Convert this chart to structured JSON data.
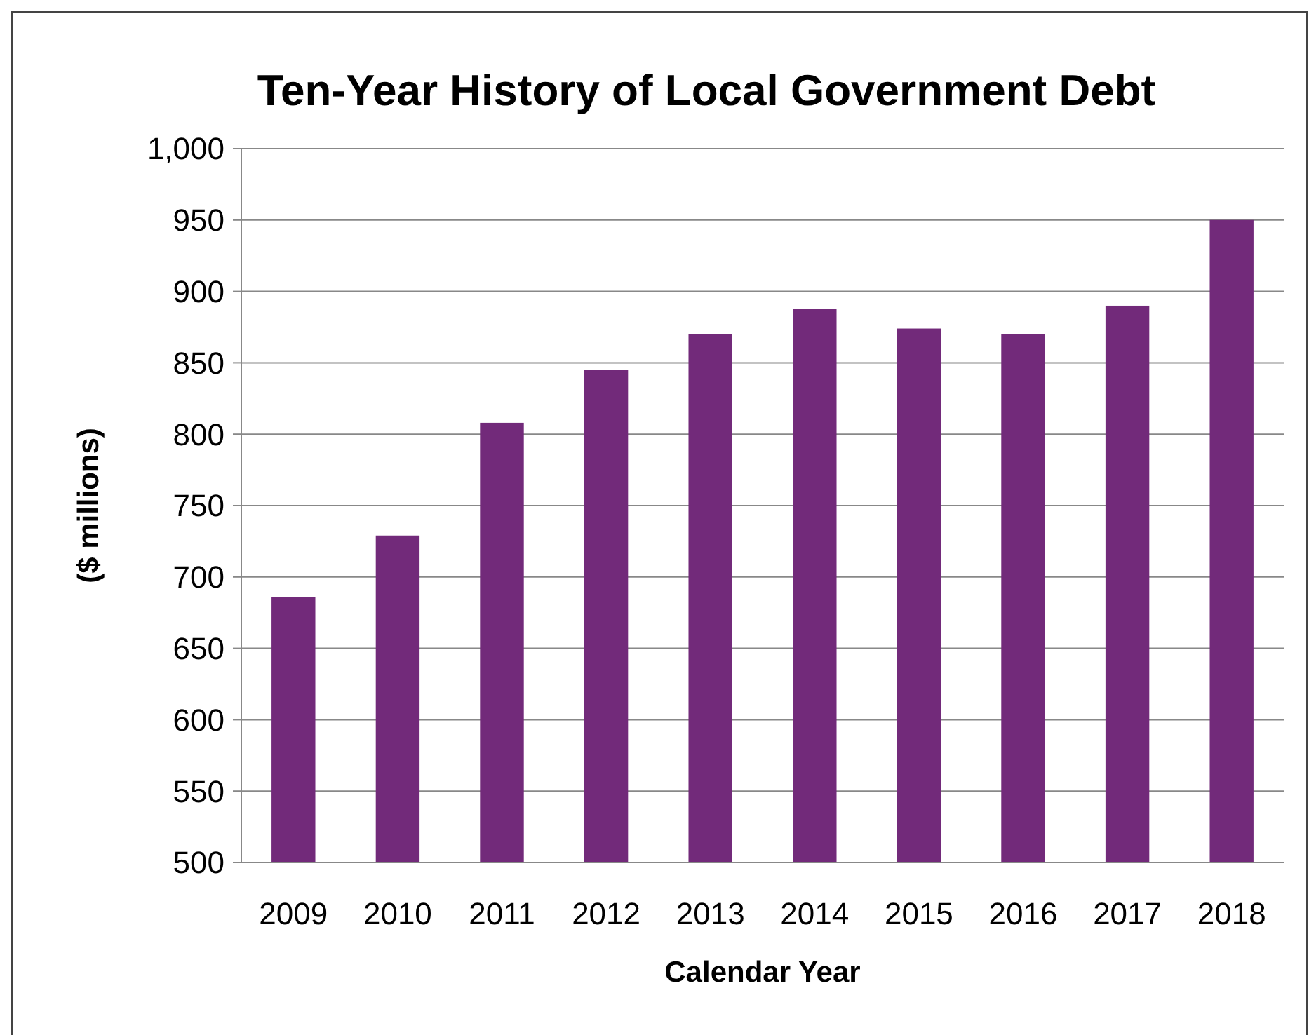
{
  "chart_data": {
    "type": "bar",
    "title": "Ten-Year History of Local Government Debt",
    "xlabel": "Calendar Year",
    "ylabel": "($ millions)",
    "categories": [
      "2009",
      "2010",
      "2011",
      "2012",
      "2013",
      "2014",
      "2015",
      "2016",
      "2017",
      "2018"
    ],
    "values": [
      686,
      729,
      808,
      845,
      870,
      888,
      874,
      870,
      890,
      950
    ],
    "color": "#722a7a",
    "ylim": [
      500,
      1000
    ],
    "yticks": [
      500,
      550,
      600,
      650,
      700,
      750,
      800,
      850,
      900,
      950,
      {
        "value": 1000,
        "label": "1,000"
      }
    ],
    "grid": "y"
  }
}
